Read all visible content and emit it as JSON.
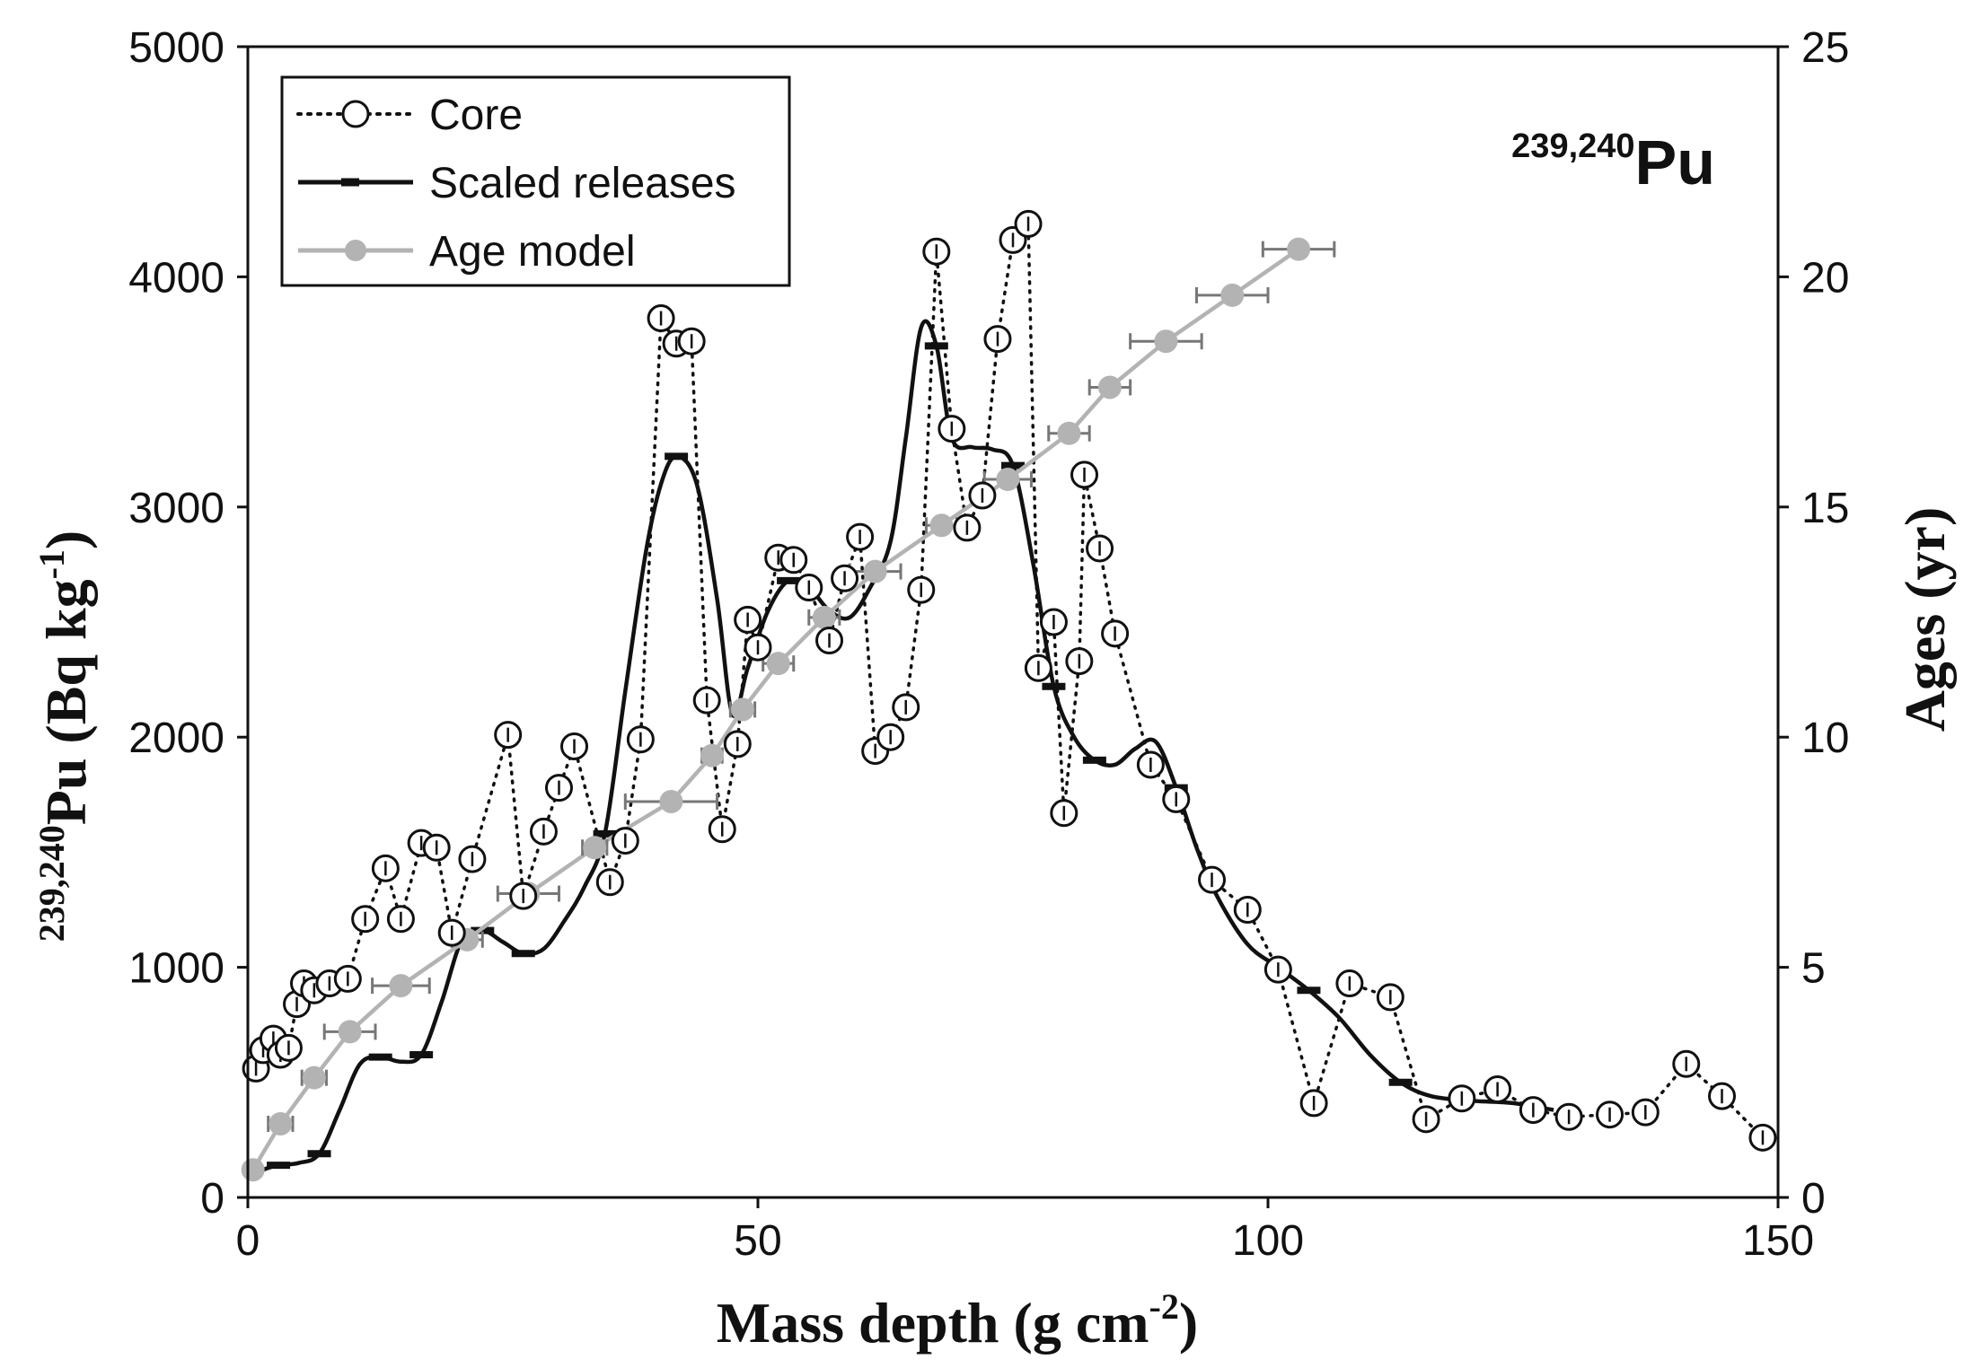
{
  "chart_data": {
    "type": "line",
    "annotation": {
      "superscript": "239,240",
      "base": "Pu"
    },
    "xlabel": {
      "text": "Mass depth (g cm",
      "sup": "-2",
      "close": ")"
    },
    "ylabel": {
      "sup": "239,240",
      "text": "Pu (Bq kg",
      "sup2": "-1",
      "close": ")"
    },
    "y2label": "Ages (yr)",
    "xlim": [
      0,
      150
    ],
    "ylim": [
      0,
      5000
    ],
    "y2lim": [
      0,
      25
    ],
    "xticks": [
      0,
      50,
      100,
      150
    ],
    "yticks": [
      0,
      1000,
      2000,
      3000,
      4000,
      5000
    ],
    "y2ticks": [
      0,
      5,
      10,
      15,
      20,
      25
    ],
    "legend": {
      "position": "top-left",
      "entries": [
        {
          "label": "Core",
          "style": "dotted-circle"
        },
        {
          "label": "Scaled releases",
          "style": "solid-black"
        },
        {
          "label": "Age model",
          "style": "gray-dot"
        }
      ]
    },
    "series": [
      {
        "name": "Core",
        "axis": "left",
        "x": [
          0.8,
          1.5,
          2.5,
          3.2,
          4.0,
          4.8,
          5.5,
          6.5,
          8.0,
          9.8,
          11.5,
          13.5,
          15.0,
          17.0,
          18.5,
          20.0,
          22.0,
          25.5,
          27.0,
          29.0,
          30.5,
          32.0,
          35.5,
          37.0,
          38.5,
          40.5,
          42.0,
          43.5,
          45.0,
          46.5,
          48.0,
          49.0,
          50.0,
          52.0,
          53.5,
          55.0,
          57.0,
          58.5,
          60.0,
          61.5,
          63.0,
          64.5,
          66.0,
          67.5,
          69.0,
          70.5,
          72.0,
          73.5,
          75.0,
          76.5,
          77.5,
          79.0,
          80.0,
          81.5,
          82.0,
          83.5,
          85.0,
          88.5,
          91.0,
          94.5,
          98.0,
          101.0,
          104.5,
          108.0,
          112.0,
          115.5,
          119.0,
          122.5,
          126.0,
          129.5,
          133.5,
          137.0,
          141.0,
          144.5,
          148.5
        ],
        "values": [
          560,
          640,
          690,
          620,
          650,
          840,
          930,
          900,
          930,
          950,
          1210,
          1430,
          1210,
          1540,
          1520,
          1150,
          1470,
          2010,
          1310,
          1590,
          1780,
          1960,
          1370,
          1550,
          1990,
          3820,
          3710,
          3720,
          2160,
          1600,
          1970,
          2510,
          2390,
          2780,
          2770,
          2650,
          2420,
          2690,
          2870,
          1940,
          2000,
          2130,
          2640,
          4110,
          3340,
          2910,
          3050,
          3730,
          4160,
          4230,
          2300,
          2500,
          1670,
          2330,
          3140,
          2820,
          2450,
          1880,
          1730,
          1380,
          1250,
          990,
          410,
          930,
          870,
          340,
          430,
          470,
          380,
          350,
          360,
          370,
          580,
          440,
          260
        ]
      },
      {
        "name": "Scaled releases",
        "axis": "left",
        "x": [
          0,
          1.5,
          3,
          5,
          7,
          9,
          11,
          13,
          15,
          17,
          19,
          21,
          23,
          25,
          27,
          29,
          31,
          33,
          35,
          37,
          39,
          40.5,
          42,
          44,
          46,
          47.5,
          49,
          51,
          53,
          55,
          57,
          59,
          61,
          63,
          64.5,
          66,
          67.5,
          69,
          71,
          73,
          75,
          77,
          79,
          81,
          83,
          85,
          87,
          89,
          91,
          93,
          95,
          98,
          101,
          104,
          107,
          110,
          113,
          116,
          120,
          124,
          128
        ],
        "values": [
          80,
          120,
          140,
          150,
          190,
          380,
          580,
          610,
          590,
          620,
          850,
          1120,
          1160,
          1110,
          1060,
          1080,
          1200,
          1350,
          1580,
          2200,
          2800,
          3100,
          3220,
          3100,
          2600,
          2100,
          2300,
          2550,
          2680,
          2650,
          2550,
          2520,
          2650,
          2850,
          3300,
          3780,
          3700,
          3300,
          3260,
          3250,
          3180,
          2750,
          2220,
          2000,
          1900,
          1880,
          1950,
          1980,
          1780,
          1520,
          1310,
          1100,
          1000,
          900,
          780,
          620,
          500,
          440,
          420,
          410,
          380
        ]
      },
      {
        "name": "Age model",
        "axis": "right",
        "x": [
          0.5,
          3.2,
          6.5,
          10.0,
          15.0,
          21.5,
          27.5,
          34.0,
          41.5,
          45.5,
          48.5,
          52.0,
          56.5,
          61.5,
          68.0,
          74.5,
          80.5,
          84.5,
          90.0,
          96.5,
          103.0
        ],
        "values": [
          0.6,
          1.6,
          2.6,
          3.6,
          4.6,
          5.6,
          6.6,
          7.6,
          8.6,
          9.6,
          10.6,
          11.6,
          12.6,
          13.6,
          14.6,
          15.6,
          16.6,
          17.6,
          18.6,
          19.6,
          20.6
        ],
        "xerr": [
          0.3,
          1.2,
          1.2,
          2.5,
          2.8,
          1.5,
          3.0,
          1.2,
          4.5,
          1.0,
          1.2,
          1.5,
          1.5,
          2.5,
          1.5,
          2.3,
          2.0,
          2.0,
          3.5,
          3.5,
          3.5
        ]
      }
    ],
    "colors": {
      "core": "#111111",
      "releases": "#111111",
      "age_model": "#b3b3b3",
      "age_err": "#777777",
      "axis": "#111111"
    }
  }
}
